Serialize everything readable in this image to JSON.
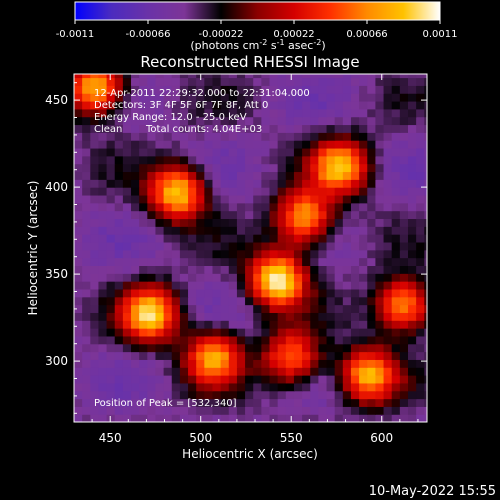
{
  "colorbar": {
    "ticks": [
      "-0.0011",
      "-0.00066",
      "-0.00022",
      "0.00022",
      "0.00066",
      "0.0011"
    ],
    "tick_values": [
      -0.0011,
      -0.00066,
      -0.00022,
      0.00022,
      0.00066,
      0.0011
    ],
    "range": [
      -0.0011,
      0.0011
    ],
    "units_main": "(photons cm",
    "units_sup1": "-2",
    "units_mid1": " s",
    "units_sup2": "-1",
    "units_mid2": " asec",
    "units_sup3": "-2",
    "units_end": ")",
    "colormap": [
      "#0000ff",
      "#4b2bbf",
      "#6a32a8",
      "#7d3597",
      "#000000",
      "#8b0000",
      "#d40000",
      "#ff3000",
      "#ff8a00",
      "#ffc200",
      "#ffffff"
    ]
  },
  "chart_data": {
    "type": "heatmap",
    "title": "Reconstructed RHESSI Image",
    "xlabel": "Heliocentric X (arcsec)",
    "ylabel": "Heliocentric Y (arcsec)",
    "xlim": [
      430,
      625
    ],
    "ylim": [
      265,
      465
    ],
    "xticks": [
      450,
      500,
      550,
      600
    ],
    "yticks": [
      300,
      350,
      400,
      450
    ],
    "info": {
      "time": "12-Apr-2011 22:29:32.000 to 22:31:04.000",
      "detectors": "Detectors: 3F 4F 5F 6F 7F 8F, Att 0",
      "energy": "Energy Range: 12.0 - 25.0 keV",
      "clean": "Clean",
      "counts": "Total counts: 4.04E+03"
    },
    "peak_text": "Position of Peak = [532,340]",
    "peak": [
      532,
      340
    ],
    "sources": [
      {
        "x": 540,
        "y": 345,
        "value": 0.0011
      },
      {
        "x": 555,
        "y": 380,
        "value": 0.0008
      },
      {
        "x": 470,
        "y": 325,
        "value": 0.0009
      },
      {
        "x": 485,
        "y": 395,
        "value": 0.0009
      },
      {
        "x": 505,
        "y": 300,
        "value": 0.0007
      },
      {
        "x": 590,
        "y": 290,
        "value": 0.0008
      },
      {
        "x": 610,
        "y": 330,
        "value": 0.0008
      },
      {
        "x": 575,
        "y": 410,
        "value": 0.0008
      },
      {
        "x": 440,
        "y": 455,
        "value": 0.0009
      },
      {
        "x": 548,
        "y": 300,
        "value": 0.0006
      }
    ],
    "grid": false
  },
  "footer": {
    "date": "10-May-2022 15:55"
  }
}
